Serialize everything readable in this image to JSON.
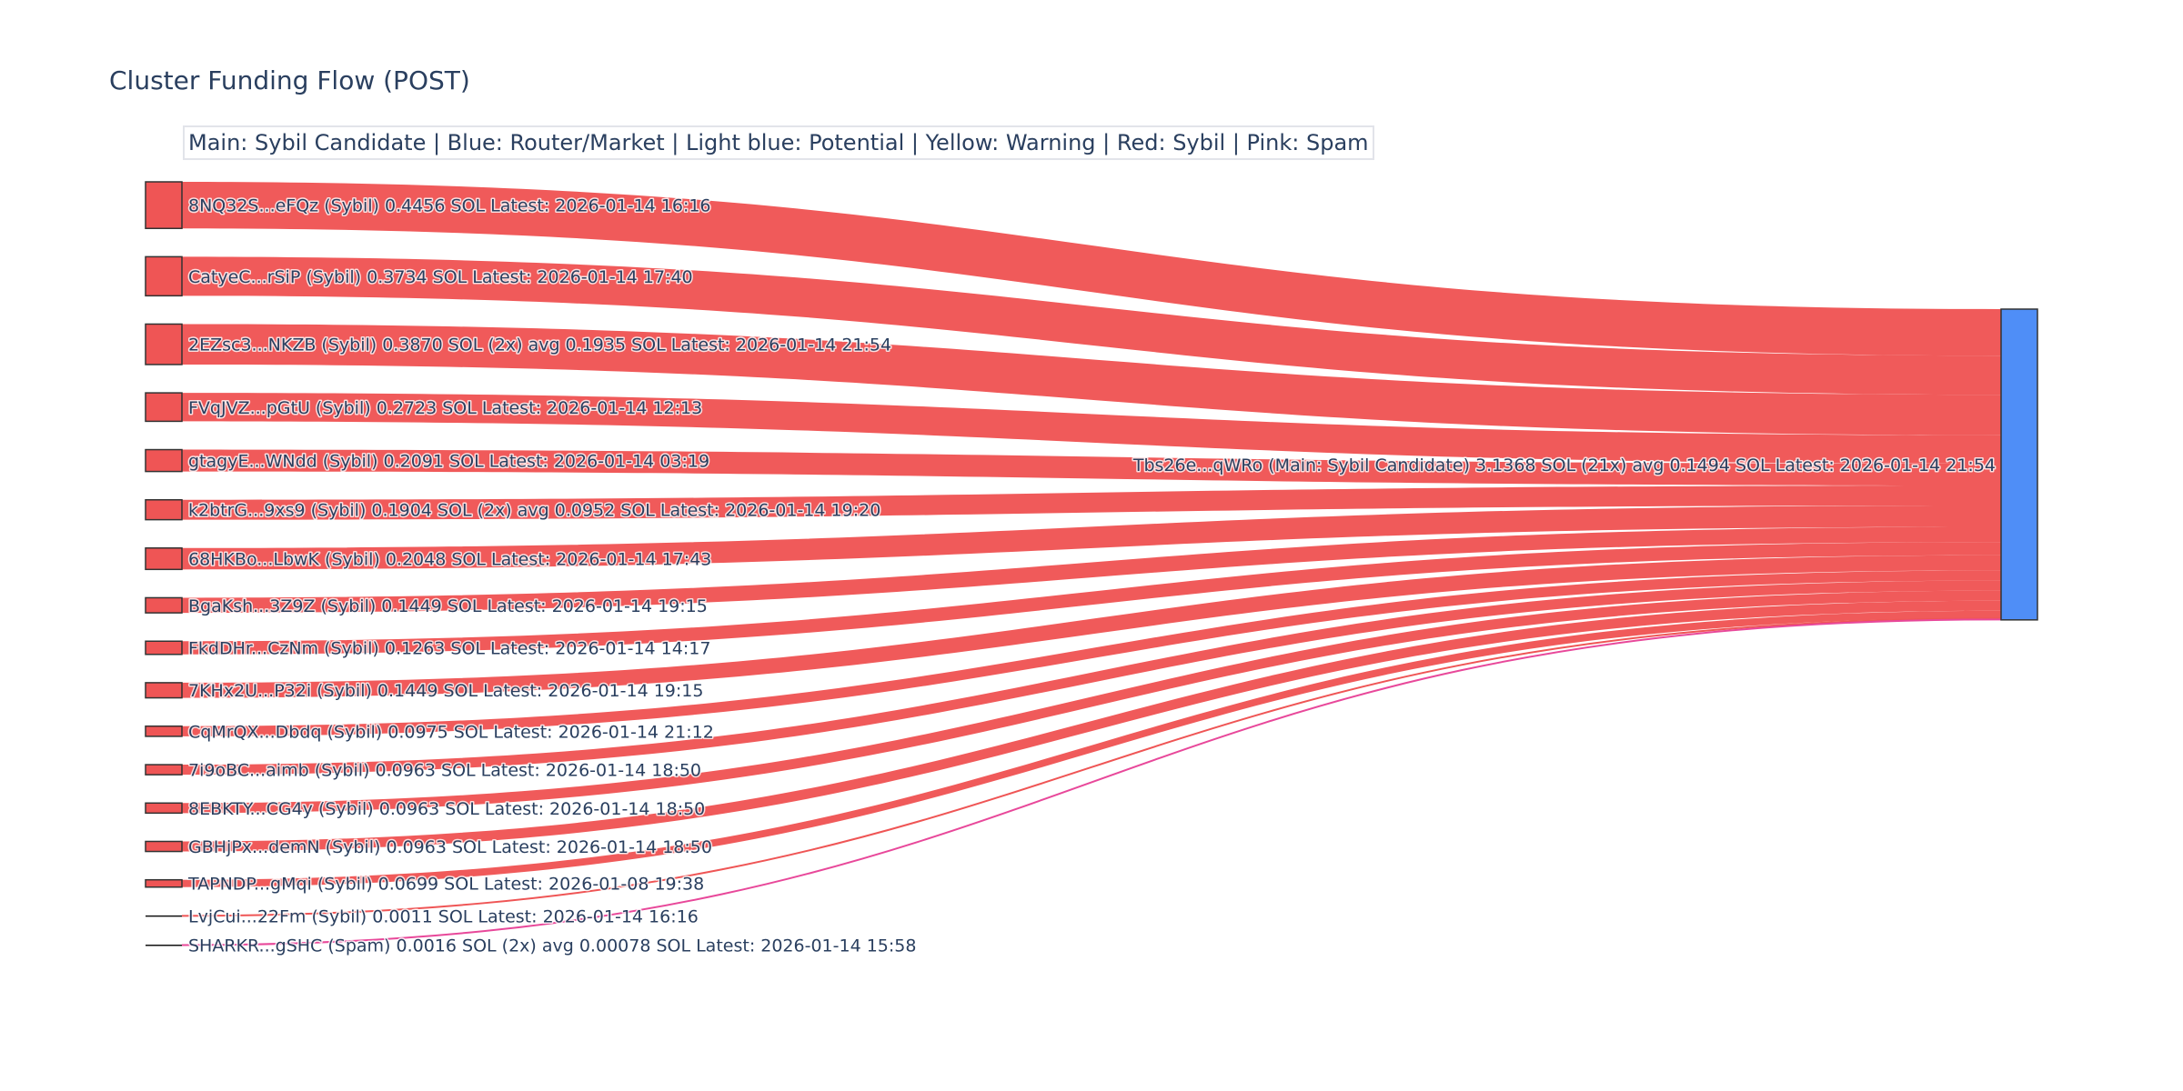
{
  "chart_data": {
    "type": "sankey",
    "title": "Cluster Funding Flow (POST)",
    "legend_text": "Main: Sybil Candidate  |  Blue: Router/Market | Light blue: Potential | Yellow: Warning | Red: Sybil | Pink: Spam",
    "colors": {
      "sybil": "#ef5555",
      "spam": "#e8489a",
      "main": "#4f8ef7",
      "node_border": "#333333"
    },
    "target": {
      "label": "Tbs26e...qWRo (Main: Sybil Candidate) 3.1368 SOL (21x) avg 0.1494 SOL Latest: 2026-01-14 21:54",
      "value": 3.1368
    },
    "sources": [
      {
        "label": "8NQ32S...eFQz (Sybil) 0.4456 SOL Latest: 2026-01-14 16:16",
        "value": 0.4456,
        "category": "sybil"
      },
      {
        "label": "CatyeC...rSiP (Sybil) 0.3734 SOL Latest: 2026-01-14 17:40",
        "value": 0.3734,
        "category": "sybil"
      },
      {
        "label": "2EZsc3...NKZB (Sybil) 0.3870 SOL (2x) avg 0.1935 SOL Latest: 2026-01-14 21:54",
        "value": 0.387,
        "category": "sybil"
      },
      {
        "label": "FVqJVZ...pGtU (Sybil) 0.2723 SOL Latest: 2026-01-14 12:13",
        "value": 0.2723,
        "category": "sybil"
      },
      {
        "label": "gtagyE...WNdd (Sybil) 0.2091 SOL Latest: 2026-01-14 03:19",
        "value": 0.2091,
        "category": "sybil"
      },
      {
        "label": "k2btrG...9xs9 (Sybil) 0.1904 SOL (2x) avg 0.0952 SOL Latest: 2026-01-14 19:20",
        "value": 0.1904,
        "category": "sybil"
      },
      {
        "label": "68HKBo...LbwK (Sybil) 0.2048 SOL Latest: 2026-01-14 17:43",
        "value": 0.2048,
        "category": "sybil"
      },
      {
        "label": "BgaKsh...3Z9Z (Sybil) 0.1449 SOL Latest: 2026-01-14 19:15",
        "value": 0.1449,
        "category": "sybil"
      },
      {
        "label": "FkdDHr...CzNm (Sybil) 0.1263 SOL Latest: 2026-01-14 14:17",
        "value": 0.1263,
        "category": "sybil"
      },
      {
        "label": "7KHx2U...P32i (Sybil) 0.1449 SOL Latest: 2026-01-14 19:15",
        "value": 0.1449,
        "category": "sybil"
      },
      {
        "label": "CqMrQX...Dbdq (Sybil) 0.0975 SOL Latest: 2026-01-14 21:12",
        "value": 0.0975,
        "category": "sybil"
      },
      {
        "label": "7i9oBC...aimb (Sybil) 0.0963 SOL Latest: 2026-01-14 18:50",
        "value": 0.0963,
        "category": "sybil"
      },
      {
        "label": "8EBKTY...CG4y (Sybil) 0.0963 SOL Latest: 2026-01-14 18:50",
        "value": 0.0963,
        "category": "sybil"
      },
      {
        "label": "GBHjPx...demN (Sybil) 0.0963 SOL Latest: 2026-01-14 18:50",
        "value": 0.0963,
        "category": "sybil"
      },
      {
        "label": "TAPNDP...gMqi (Sybil) 0.0699 SOL Latest: 2026-01-08 19:38",
        "value": 0.0699,
        "category": "sybil"
      },
      {
        "label": "LvjCui...22Fm (Sybil) 0.0011 SOL Latest: 2026-01-14 16:16",
        "value": 0.0011,
        "category": "sybil"
      },
      {
        "label": "SHARKR...gSHC (Spam) 0.0016 SOL (2x) avg 0.00078 SOL Latest: 2026-01-14 15:58",
        "value": 0.0016,
        "category": "spam"
      }
    ]
  }
}
